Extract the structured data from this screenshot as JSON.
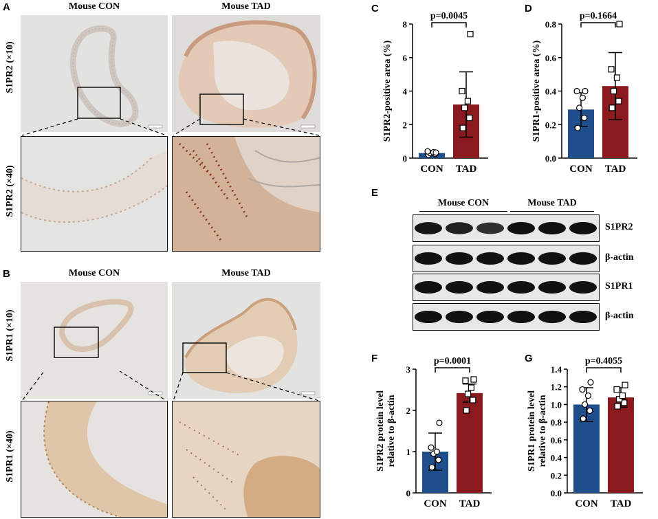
{
  "panels": {
    "A": {
      "label": "A",
      "col_headers": [
        "Mouse CON",
        "Mouse TAD"
      ],
      "row_labels": [
        "S1PR2 (×10)",
        "S1PR2 (×40)"
      ]
    },
    "B": {
      "label": "B",
      "col_headers": [
        "Mouse CON",
        "Mouse TAD"
      ],
      "row_labels": [
        "S1PR1 (×10)",
        "S1PR1 (×40)"
      ]
    },
    "E": {
      "label": "E",
      "group_labels": [
        "Mouse CON",
        "Mouse TAD"
      ],
      "band_labels": [
        "S1PR2",
        "β-actin",
        "S1PR1",
        "β-actin"
      ]
    }
  },
  "colors": {
    "con": "#1f4e8c",
    "tad": "#8b1a1f",
    "tissue_bg": "#dcdcdc",
    "stain_light": "#e9ddd6"
  },
  "chart_data": [
    {
      "id": "C",
      "panel_label": "C",
      "type": "bar",
      "categories": [
        "CON",
        "TAD"
      ],
      "values": [
        0.3,
        3.2
      ],
      "error": [
        0.08,
        1.95
      ],
      "points": [
        [
          0.2,
          0.25,
          0.3,
          0.35,
          0.4,
          0.33
        ],
        [
          1.8,
          2.4,
          3.0,
          3.4,
          4.0,
          7.4
        ]
      ],
      "ylabel": "S1PR2-positive area (%)",
      "ylim": [
        0,
        8
      ],
      "yticks": [
        0,
        2,
        4,
        6,
        8
      ],
      "ytick_labels": [
        "0",
        "2",
        "4",
        "6",
        "8"
      ],
      "pvalue": "p=0.0045"
    },
    {
      "id": "D",
      "panel_label": "D",
      "type": "bar",
      "categories": [
        "CON",
        "TAD"
      ],
      "values": [
        0.29,
        0.43
      ],
      "error": [
        0.1,
        0.2
      ],
      "points": [
        [
          0.18,
          0.24,
          0.3,
          0.36,
          0.4,
          0.4
        ],
        [
          0.3,
          0.34,
          0.4,
          0.48,
          0.53,
          0.8
        ]
      ],
      "ylabel": "S1PR1-positive area (%)",
      "ylim": [
        0,
        0.8
      ],
      "yticks": [
        0,
        0.2,
        0.4,
        0.6,
        0.8
      ],
      "ytick_labels": [
        "0.0",
        "0.2",
        "0.4",
        "0.6",
        "0.8"
      ],
      "pvalue": "p=0.1664"
    },
    {
      "id": "F",
      "panel_label": "F",
      "type": "bar",
      "categories": [
        "CON",
        "TAD"
      ],
      "values": [
        1.0,
        2.42
      ],
      "error": [
        0.45,
        0.22
      ],
      "points": [
        [
          0.62,
          0.8,
          0.95,
          1.0,
          1.1,
          1.7
        ],
        [
          2.0,
          2.25,
          2.4,
          2.55,
          2.72,
          2.75
        ]
      ],
      "ylabel": "S1PR2 protein level relative to β-actin",
      "ylim": [
        0,
        3
      ],
      "yticks": [
        0,
        1,
        2,
        3
      ],
      "ytick_labels": [
        "0",
        "1",
        "2",
        "3"
      ],
      "pvalue": "p=0.0001"
    },
    {
      "id": "G",
      "panel_label": "G",
      "type": "bar",
      "categories": [
        "CON",
        "TAD"
      ],
      "values": [
        1.0,
        1.08
      ],
      "error": [
        0.19,
        0.11
      ],
      "points": [
        [
          0.84,
          0.93,
          1.0,
          1.1,
          1.17,
          1.25
        ],
        [
          0.98,
          1.02,
          1.06,
          1.1,
          1.17,
          1.22
        ]
      ],
      "ylabel": "S1PR1 protein level relative to β-actin",
      "ylim": [
        0,
        1.4
      ],
      "yticks": [
        0,
        0.2,
        0.4,
        0.6,
        0.8,
        1.0,
        1.2,
        1.4
      ],
      "ytick_labels": [
        "0.0",
        "0.2",
        "0.4",
        "0.6",
        "0.8",
        "1.0",
        "1.2",
        "1.4"
      ],
      "pvalue": "p=0.4055"
    }
  ]
}
